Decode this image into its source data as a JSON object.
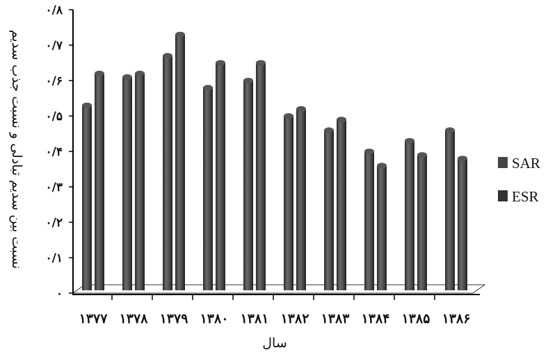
{
  "chart_data": {
    "type": "bar",
    "style": "3d-cylinder",
    "categories": [
      "۱۳۷۷",
      "۱۳۷۸",
      "۱۳۷۹",
      "۱۳۸۰",
      "۱۳۸۱",
      "۱۳۸۲",
      "۱۳۸۳",
      "۱۳۸۴",
      "۱۳۸۵",
      "۱۳۸۶"
    ],
    "series": [
      {
        "name": "SAR",
        "color": "#4a4a4a",
        "values": [
          0.53,
          0.61,
          0.67,
          0.58,
          0.6,
          0.5,
          0.46,
          0.4,
          0.43,
          0.46
        ]
      },
      {
        "name": "ESR",
        "color": "#3a3a3a",
        "values": [
          0.62,
          0.62,
          0.73,
          0.65,
          0.65,
          0.52,
          0.49,
          0.36,
          0.39,
          0.38
        ]
      }
    ],
    "y_ticks": [
      {
        "value": 0,
        "label": "۰"
      },
      {
        "value": 0.1,
        "label": "۰/۱"
      },
      {
        "value": 0.2,
        "label": "۰/۲"
      },
      {
        "value": 0.3,
        "label": "۰/۳"
      },
      {
        "value": 0.4,
        "label": "۰/۴"
      },
      {
        "value": 0.5,
        "label": "۰/۵"
      },
      {
        "value": 0.6,
        "label": "۰/۶"
      },
      {
        "value": 0.7,
        "label": "۰/۷"
      },
      {
        "value": 0.8,
        "label": "۰/۸"
      }
    ],
    "ylim": [
      0,
      0.8
    ],
    "xlabel": "سال",
    "ylabel": "نسبت بین سدیم تبادلی و نسبت جذب سدیم",
    "title": "",
    "legend_position": "right",
    "grid": false
  }
}
